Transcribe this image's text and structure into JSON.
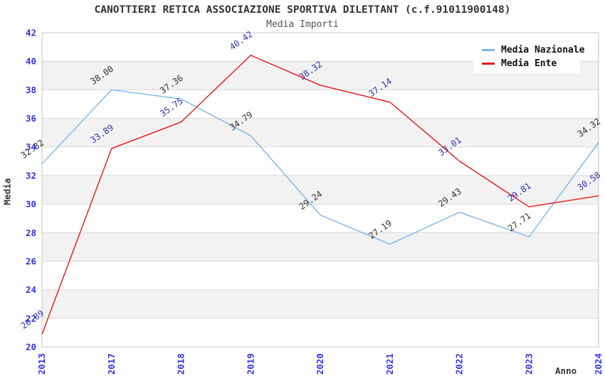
{
  "title": "CANOTTIERI RETICA ASSOCIAZIONE SPORTIVA DILETTANT (c.f.91011900148)",
  "subtitle": "Media Importi",
  "chart_data": {
    "type": "line",
    "title": "CANOTTIERI RETICA ASSOCIAZIONE SPORTIVA DILETTANT (c.f.91011900148)",
    "subtitle": "Media Importi",
    "xlabel": "Anno",
    "ylabel": "Media",
    "categories": [
      "2013",
      "2017",
      "2018",
      "2019",
      "2020",
      "2021",
      "2022",
      "2023",
      "2024"
    ],
    "series": [
      {
        "name": "Media Nazionale",
        "color": "#7cb5ec",
        "label_color": "#333333",
        "values": [
          32.82,
          38.0,
          37.36,
          34.79,
          29.24,
          27.19,
          29.43,
          27.71,
          34.32
        ]
      },
      {
        "name": "Media Ente",
        "color": "#e81717",
        "label_color": "#3333b3",
        "values": [
          20.89,
          33.89,
          35.75,
          40.42,
          38.32,
          37.14,
          33.01,
          29.81,
          30.58
        ]
      }
    ],
    "ylim": [
      20,
      42
    ],
    "ytick_step": 2,
    "yticks": [
      20,
      22,
      24,
      26,
      28,
      30,
      32,
      34,
      36,
      38,
      40,
      42
    ],
    "grid": true,
    "legend_position": "top-right",
    "tick_color": "#3333ee",
    "band_color": "#f2f2f2",
    "grid_color": "#d9d9d9",
    "border_color": "#c6c6c6"
  }
}
